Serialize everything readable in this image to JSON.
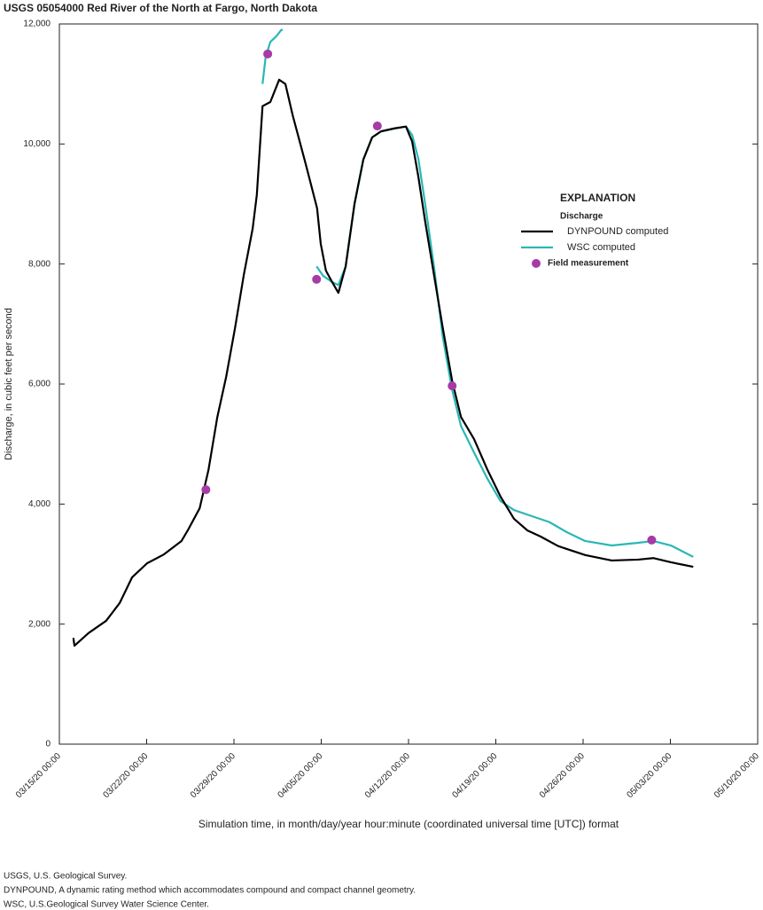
{
  "chart_data": {
    "type": "line",
    "title": "USGS 05054000 Red River of the North at Fargo, North Dakota",
    "x_label": "Simulation time, in month/day/year hour:minute (coordinated universal time [UTC]) format",
    "y_label": "Discharge, in cubic feet per second",
    "legend_title": "EXPLANATION",
    "legend_subtitle": "Discharge",
    "xlim": [
      "2020-03-15T00:00",
      "2020-05-10T00:00"
    ],
    "xticks": [
      {
        "value": "2020-03-15T00:00",
        "label": "03/15/20 00:00"
      },
      {
        "value": "2020-03-22T00:00",
        "label": "03/22/20 00:00"
      },
      {
        "value": "2020-03-29T00:00",
        "label": "03/29/20 00:00"
      },
      {
        "value": "2020-04-05T00:00",
        "label": "04/05/20 00:00"
      },
      {
        "value": "2020-04-12T00:00",
        "label": "04/12/20 00:00"
      },
      {
        "value": "2020-04-19T00:00",
        "label": "04/19/20 00:00"
      },
      {
        "value": "2020-04-26T00:00",
        "label": "04/26/20 00:00"
      },
      {
        "value": "2020-05-03T00:00",
        "label": "05/03/20 00:00"
      },
      {
        "value": "2020-05-10T00:00",
        "label": "05/10/20 00:00"
      }
    ],
    "ylim": [
      0,
      12000
    ],
    "yticks": [
      0,
      {
        "value": 2000,
        "label": "2,000"
      },
      {
        "value": 4000,
        "label": "4,000"
      },
      {
        "value": 6000,
        "label": "6,000"
      },
      {
        "value": 8000,
        "label": "8,000"
      },
      {
        "value": 10000,
        "label": "10,000"
      },
      {
        "value": 12000,
        "label": "12,000"
      }
    ],
    "series": [
      {
        "name": "DYNPOUND computed",
        "type": "line",
        "color": "#000000",
        "x": [
          "2020-03-16T03:00",
          "2020-03-16T05:00",
          "2020-03-17T08:00",
          "2020-03-18T18:00",
          "2020-03-19T20:00",
          "2020-03-20T20:00",
          "2020-03-22T01:00",
          "2020-03-23T09:00",
          "2020-03-24T19:00",
          "2020-03-25T07:00",
          "2020-03-26T06:00",
          "2020-03-26T23:00",
          "2020-03-27T16:00",
          "2020-03-28T09:00",
          "2020-03-29T02:00",
          "2020-03-29T19:00",
          "2020-03-30T12:00",
          "2020-03-30T20:00",
          "2020-03-31T07:00",
          "2020-03-31T22:00",
          "2020-04-01T15:00",
          "2020-04-02T03:00",
          "2020-04-02T17:00",
          "2020-04-03T18:00",
          "2020-04-04T16:00",
          "2020-04-04T23:00",
          "2020-04-05T09:00",
          "2020-04-05T21:00",
          "2020-04-06T09:00",
          "2020-04-06T23:00",
          "2020-04-07T16:00",
          "2020-04-08T09:00",
          "2020-04-09T02:00",
          "2020-04-09T19:00",
          "2020-04-10T21:00",
          "2020-04-11T19:00",
          "2020-04-12T07:00",
          "2020-04-12T19:00",
          "2020-04-13T08:00",
          "2020-04-14T01:00",
          "2020-04-14T18:00",
          "2020-04-15T12:00",
          "2020-04-16T05:00",
          "2020-04-17T06:00",
          "2020-04-18T08:00",
          "2020-04-19T09:00",
          "2020-04-20T11:00",
          "2020-04-21T13:00",
          "2020-04-22T14:00",
          "2020-04-24T00:00",
          "2020-04-26T04:00",
          "2020-04-28T07:00",
          "2020-04-30T10:00",
          "2020-05-01T15:00",
          "2020-05-03T01:00",
          "2020-05-04T20:00"
        ],
        "values": [
          1770,
          1640,
          1850,
          2055,
          2350,
          2780,
          3015,
          3160,
          3385,
          3560,
          3930,
          4570,
          5450,
          6120,
          6930,
          7820,
          8590,
          9150,
          10630,
          10700,
          11070,
          11000,
          10480,
          9670,
          8930,
          8340,
          7890,
          7700,
          7520,
          7960,
          9000,
          9740,
          10110,
          10210,
          10260,
          10290,
          10040,
          9450,
          8710,
          7820,
          6930,
          6050,
          5450,
          5085,
          4570,
          4125,
          3755,
          3560,
          3460,
          3300,
          3150,
          3060,
          3075,
          3100,
          3030,
          2955
        ]
      },
      {
        "name": "WSC computed",
        "type": "line",
        "color": "#2ab7b7",
        "x": [
          "2020-03-31T07:00",
          "2020-03-31T13:00",
          "2020-03-31T22:00",
          "2020-04-01T10:00",
          "2020-04-01T19:00",
          "2020-04-01T22:00",
          null,
          "2020-04-04T15:00",
          "2020-04-05T04:00",
          "2020-04-05T21:00",
          "2020-04-06T09:00",
          "2020-04-06T23:00",
          "2020-04-07T16:00",
          "2020-04-08T09:00",
          "2020-04-09T02:00",
          "2020-04-09T19:00",
          "2020-04-10T21:00",
          "2020-04-11T19:00",
          "2020-04-12T07:00",
          "2020-04-12T19:00",
          "2020-04-13T08:00",
          "2020-04-14T01:00",
          "2020-04-14T18:00",
          "2020-04-15T12:00",
          "2020-04-16T05:00",
          "2020-04-17T06:00",
          "2020-04-18T08:00",
          "2020-04-19T09:00",
          "2020-04-20T11:00",
          "2020-04-21T21:00",
          "2020-04-23T07:00",
          "2020-04-24T17:00",
          "2020-04-26T04:00",
          "2020-04-28T07:00",
          "2020-04-30T10:00",
          "2020-05-01T15:00",
          "2020-05-03T01:00",
          "2020-05-04T20:00"
        ],
        "values": [
          11000,
          11450,
          11700,
          11800,
          11900,
          11900,
          null,
          7960,
          7800,
          7700,
          7650,
          7960,
          9000,
          9740,
          10110,
          10210,
          10260,
          10290,
          10150,
          9750,
          9000,
          7960,
          6780,
          5900,
          5300,
          4860,
          4420,
          4050,
          3900,
          3800,
          3700,
          3530,
          3385,
          3310,
          3355,
          3385,
          3310,
          3120
        ]
      },
      {
        "name": "Field measurement",
        "type": "scatter",
        "color": "#a63ba6",
        "x": [
          "2020-03-26T18:00",
          "2020-03-31T17:00",
          "2020-04-04T15:00",
          "2020-04-09T12:00",
          "2020-04-15T12:00",
          "2020-05-01T12:00"
        ],
        "values": [
          4240,
          11500,
          7745,
          10300,
          5970,
          3400
        ]
      }
    ],
    "notes": [
      "USGS, U.S. Geological Survey.",
      "DYNPOUND, A dynamic rating method which accommodates compound and compact channel geometry.",
      "WSC, U.S.Geological Survey Water Science Center."
    ]
  }
}
